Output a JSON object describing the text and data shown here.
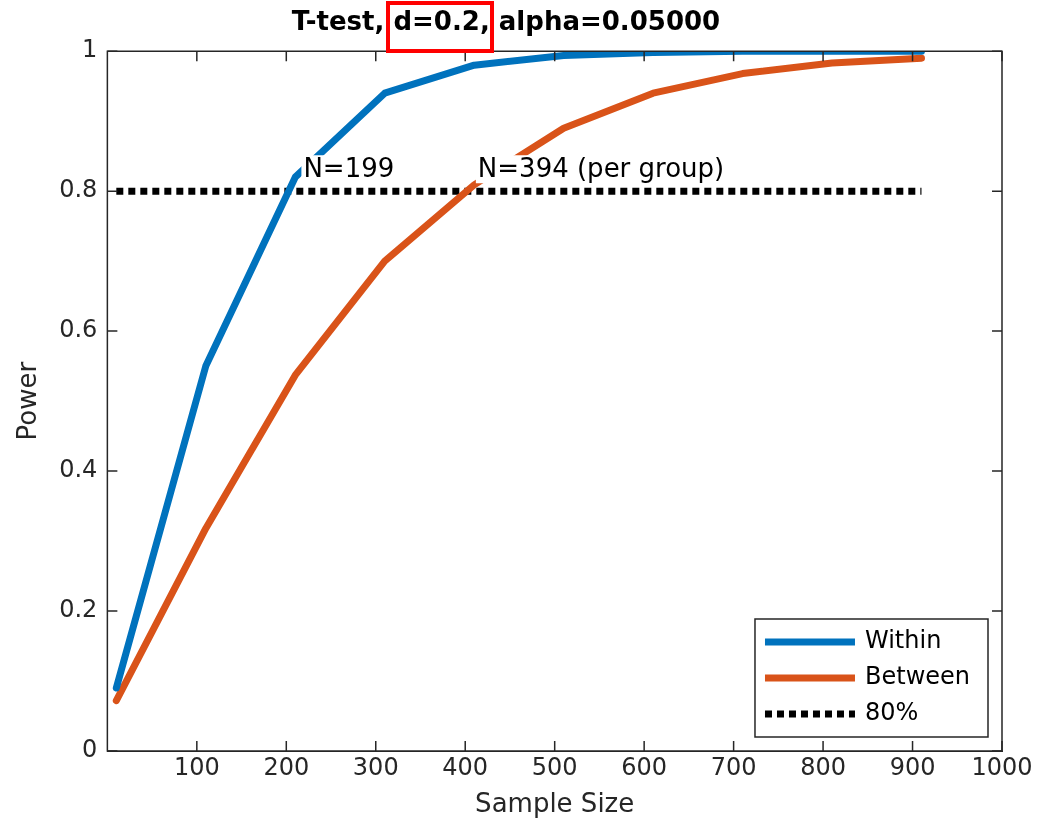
{
  "chart_data": {
    "type": "line",
    "title": "T-test, d=0.2, alpha=0.05000",
    "xlabel": "Sample Size",
    "ylabel": "Power",
    "xlim": [
      0,
      1000
    ],
    "xticks": [
      100,
      200,
      300,
      400,
      500,
      600,
      700,
      800,
      900,
      1000
    ],
    "ylim": [
      0,
      1
    ],
    "yticks": [
      0,
      0.2,
      0.4,
      0.6,
      0.8,
      1
    ],
    "x": [
      10,
      110,
      210,
      310,
      410,
      510,
      610,
      710,
      810,
      910
    ],
    "series": [
      {
        "name": "Within",
        "color": "#0072bd",
        "values": [
          0.09,
          0.55,
          0.82,
          0.94,
          0.98,
          0.994,
          0.998,
          1,
          1,
          1
        ]
      },
      {
        "name": "Between",
        "color": "#d95319",
        "values": [
          0.072,
          0.318,
          0.537,
          0.7,
          0.809,
          0.89,
          0.94,
          0.968,
          0.983,
          0.99
        ]
      },
      {
        "name": "80%",
        "color": "#000000",
        "line_style": "dotted",
        "x": [
          10,
          910
        ],
        "values": [
          0.8,
          0.8
        ]
      }
    ],
    "annotations": [
      {
        "text": "N=199",
        "x": 199,
        "y": 0.8
      },
      {
        "text": "N=394 (per group)",
        "x": 394,
        "y": 0.8
      }
    ],
    "legend": "bottom right",
    "marker": "none",
    "grid": false
  }
}
